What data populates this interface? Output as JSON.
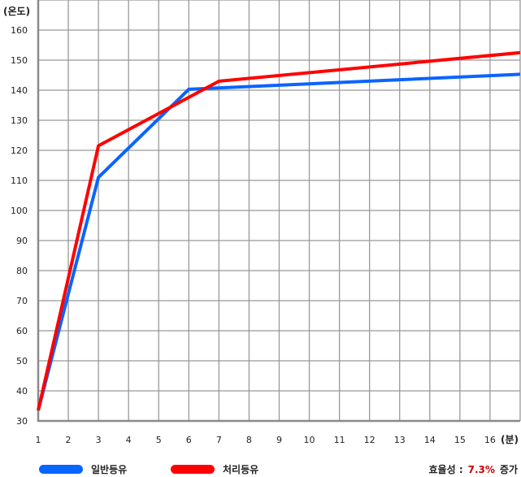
{
  "chart_data": {
    "type": "line",
    "y_unit_label": "(온도)",
    "x_unit_label": "(분)",
    "x_ticks": [
      "1",
      "2",
      "3",
      "4",
      "5",
      "6",
      "7",
      "8",
      "9",
      "10",
      "11",
      "12",
      "13",
      "14",
      "15",
      "16"
    ],
    "y_ticks": [
      "30",
      "40",
      "50",
      "60",
      "70",
      "80",
      "90",
      "100",
      "110",
      "120",
      "130",
      "140",
      "150",
      "160"
    ],
    "xlim": [
      1,
      17
    ],
    "ylim": [
      30,
      170
    ],
    "grid": true,
    "series": [
      {
        "name": "일반등유",
        "color": "#0a64ff",
        "points": [
          [
            1,
            33.5
          ],
          [
            3,
            111
          ],
          [
            6,
            140.3
          ],
          [
            17,
            145.3
          ]
        ]
      },
      {
        "name": "처리등유",
        "color": "#ff0000",
        "points": [
          [
            1,
            33.5
          ],
          [
            3,
            121.5
          ],
          [
            7,
            143
          ],
          [
            17,
            152.5
          ]
        ]
      }
    ]
  },
  "legend": {
    "efficiency_label": "효율성 :",
    "efficiency_value": "7.3%",
    "efficiency_suffix": "증가"
  }
}
